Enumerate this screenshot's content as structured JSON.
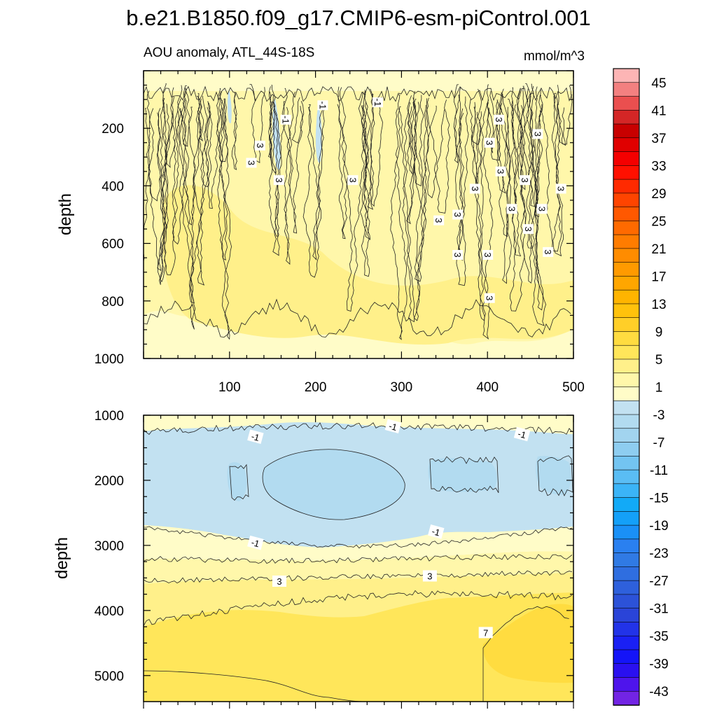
{
  "figure": {
    "title": "b.e21.B1850.f09_g17.CMIP6-esm-piControl.001",
    "subtitle_left": "AOU anomaly, ATL_44S-18S",
    "subtitle_right": "mmol/m^3"
  },
  "chart_data": [
    {
      "type": "contour",
      "panel": "upper",
      "xlabel": "",
      "ylabel": "depth",
      "xlim": [
        0,
        500
      ],
      "ylim": [
        1000,
        0
      ],
      "xticks": [
        100,
        200,
        300,
        400,
        500
      ],
      "xtick_labels": [
        "100",
        "200",
        "300",
        "400",
        "500"
      ],
      "yticks": [
        200,
        400,
        600,
        800,
        1000
      ],
      "ytick_labels": [
        "200",
        "400",
        "600",
        "800",
        "1000"
      ],
      "filled_levels_present": [
        "-3 to -1",
        "-1 to 1",
        "1 to 3",
        "3 to 5"
      ],
      "contour_labels": [
        {
          "text": "-1",
          "x": 165,
          "depth": 170
        },
        {
          "text": "-1",
          "x": 208,
          "depth": 120
        },
        {
          "text": "-1",
          "x": 272,
          "depth": 110
        },
        {
          "text": "3",
          "x": 135,
          "depth": 260
        },
        {
          "text": "3",
          "x": 125,
          "depth": 320
        },
        {
          "text": "3",
          "x": 157,
          "depth": 380
        },
        {
          "text": "3",
          "x": 243,
          "depth": 380
        },
        {
          "text": "3",
          "x": 343,
          "depth": 520
        },
        {
          "text": "3",
          "x": 365,
          "depth": 500
        },
        {
          "text": "3",
          "x": 365,
          "depth": 640
        },
        {
          "text": "3",
          "x": 385,
          "depth": 410
        },
        {
          "text": "3",
          "x": 400,
          "depth": 640
        },
        {
          "text": "3",
          "x": 402,
          "depth": 790
        },
        {
          "text": "3",
          "x": 402,
          "depth": 250
        },
        {
          "text": "3",
          "x": 413,
          "depth": 170
        },
        {
          "text": "3",
          "x": 415,
          "depth": 350
        },
        {
          "text": "3",
          "x": 428,
          "depth": 480
        },
        {
          "text": "3",
          "x": 443,
          "depth": 380
        },
        {
          "text": "3",
          "x": 447,
          "depth": 550
        },
        {
          "text": "3",
          "x": 458,
          "depth": 220
        },
        {
          "text": "3",
          "x": 463,
          "depth": 480
        },
        {
          "text": "3",
          "x": 470,
          "depth": 630
        },
        {
          "text": "3",
          "x": 485,
          "depth": 410
        }
      ]
    },
    {
      "type": "contour",
      "panel": "lower",
      "xlabel": "",
      "ylabel": "depth",
      "xlim": [
        0,
        500
      ],
      "ylim": [
        5400,
        1000
      ],
      "yticks": [
        1000,
        2000,
        3000,
        4000,
        5000
      ],
      "ytick_labels": [
        "1000",
        "2000",
        "3000",
        "4000",
        "5000"
      ],
      "filled_levels_present": [
        "-5 to -3",
        "-3 to -1",
        "-1 to 1",
        "1 to 3",
        "3 to 5",
        "5 to 7",
        "7 to 9"
      ],
      "contour_labels": [
        {
          "text": "-1",
          "x": 130,
          "depth": 1340
        },
        {
          "text": "-1",
          "x": 290,
          "depth": 1180
        },
        {
          "text": "-1",
          "x": 440,
          "depth": 1300
        },
        {
          "text": "-1",
          "x": 130,
          "depth": 2970
        },
        {
          "text": "-1",
          "x": 340,
          "depth": 2800
        },
        {
          "text": "3",
          "x": 158,
          "depth": 3560
        },
        {
          "text": "3",
          "x": 333,
          "depth": 3480
        },
        {
          "text": "7",
          "x": 398,
          "depth": 4350
        }
      ]
    }
  ],
  "colorbar": {
    "labels": [
      "45",
      "41",
      "37",
      "33",
      "29",
      "25",
      "21",
      "17",
      "13",
      "9",
      "5",
      "1",
      "-3",
      "-7",
      "-11",
      "-15",
      "-19",
      "-23",
      "-27",
      "-31",
      "-35",
      "-39",
      "-43"
    ],
    "colors_top_to_bottom": [
      "#fdb5b5",
      "#f38080",
      "#ea4f4f",
      "#d42626",
      "#c80000",
      "#e00000",
      "#f40000",
      "#ff1000",
      "#ff2a00",
      "#ff4400",
      "#ff5800",
      "#ff6a00",
      "#ff7c00",
      "#ff8c00",
      "#ff9a00",
      "#ffa600",
      "#ffb400",
      "#ffc20c",
      "#ffcf28",
      "#ffdc40",
      "#ffe65a",
      "#fff08a",
      "#fff7aa",
      "#fffcc8",
      "#c2e1f1",
      "#b2dbf0",
      "#a2d4ef",
      "#8ecdf0",
      "#73c4f1",
      "#5abdf4",
      "#3bb4f7",
      "#12aaf7",
      "#14a0f8",
      "#1a90f6",
      "#2a80f0",
      "#307ae4",
      "#2f6ee0",
      "#2e60dc",
      "#2c52d8",
      "#2a44d8",
      "#2233e8",
      "#1a20f4",
      "#1414f8",
      "#2a10f0",
      "#4e14ec",
      "#7224e4"
    ]
  }
}
